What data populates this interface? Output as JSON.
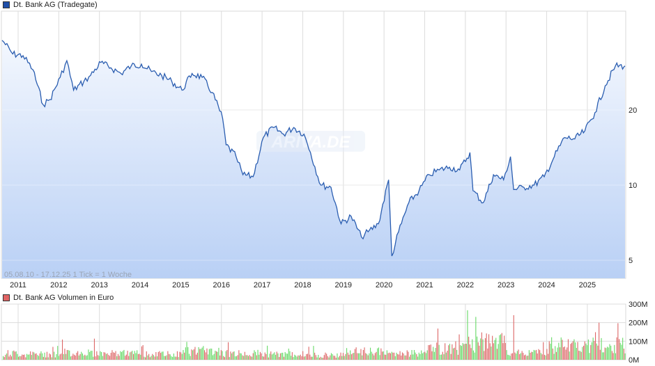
{
  "price_panel": {
    "legend_label": "Dt. Bank AG (Tradegate)",
    "legend_color": "#1f4fa8",
    "range_note": "05.08.10 - 17.12.25   1 Tick = 1 Woche",
    "watermark": "ARIVA.DE",
    "line_color": "#2a5db0",
    "fill_top": "#f3f7fe",
    "fill_bottom": "#b9d0f5"
  },
  "volume_panel": {
    "legend_label": "Dt. Bank AG Volumen in Euro",
    "legend_color": "#e06464",
    "up_color": "#66d966",
    "down_color": "#dd6666"
  },
  "x_axis": {
    "ticks": [
      "2011",
      "2012",
      "2013",
      "2014",
      "2015",
      "2016",
      "2017",
      "2018",
      "2019",
      "2020",
      "2021",
      "2022",
      "2023",
      "2024",
      "2025"
    ]
  },
  "y_axis_price": {
    "ticks": [
      "20",
      "10",
      "5"
    ]
  },
  "y_axis_volume": {
    "ticks": [
      "300M",
      "200M",
      "100M",
      "0M"
    ]
  },
  "chart_data": [
    {
      "type": "line",
      "title": "Dt. Bank AG (Tradegate)",
      "xlabel": "",
      "ylabel": "",
      "y_scale": "log",
      "ylim": [
        4.3,
        42
      ],
      "xlim": [
        "2010-08-05",
        "2025-12-17"
      ],
      "grid": true,
      "legend_position": "top-left",
      "x": [
        "2010-08",
        "2010-11",
        "2011-02",
        "2011-05",
        "2011-08",
        "2011-10",
        "2012-01",
        "2012-03",
        "2012-05",
        "2012-08",
        "2012-10",
        "2013-01",
        "2013-04",
        "2013-07",
        "2013-10",
        "2014-01",
        "2014-04",
        "2014-07",
        "2014-10",
        "2015-01",
        "2015-04",
        "2015-07",
        "2015-10",
        "2016-01",
        "2016-02",
        "2016-05",
        "2016-07",
        "2016-10",
        "2017-01",
        "2017-04",
        "2017-07",
        "2017-10",
        "2018-01",
        "2018-03",
        "2018-06",
        "2018-09",
        "2018-12",
        "2019-03",
        "2019-06",
        "2019-08",
        "2019-11",
        "2020-02",
        "2020-03",
        "2020-05",
        "2020-08",
        "2020-11",
        "2021-02",
        "2021-05",
        "2021-08",
        "2021-11",
        "2022-02",
        "2022-03",
        "2022-06",
        "2022-09",
        "2022-12",
        "2023-02",
        "2023-03",
        "2023-06",
        "2023-09",
        "2023-12",
        "2024-03",
        "2024-06",
        "2024-09",
        "2024-12",
        "2025-03",
        "2025-06",
        "2025-09",
        "2025-12"
      ],
      "values": [
        38.0,
        33.5,
        33.0,
        29.0,
        21.0,
        22.0,
        27.0,
        31.5,
        24.0,
        26.0,
        27.5,
        31.0,
        29.5,
        28.0,
        30.0,
        30.5,
        28.5,
        27.5,
        26.0,
        24.0,
        28.0,
        27.0,
        23.5,
        18.5,
        14.5,
        13.0,
        11.0,
        10.8,
        15.5,
        17.0,
        16.0,
        17.0,
        16.0,
        13.5,
        10.0,
        9.8,
        7.0,
        7.5,
        6.2,
        6.5,
        7.0,
        10.5,
        5.2,
        6.5,
        8.5,
        9.5,
        11.0,
        11.5,
        11.8,
        11.5,
        13.5,
        9.5,
        8.5,
        11.0,
        10.5,
        13.0,
        9.6,
        9.8,
        10.0,
        10.8,
        13.0,
        15.5,
        15.3,
        16.5,
        19.5,
        25.0,
        30.0,
        30.0
      ],
      "annotations": [
        "05.08.10 - 17.12.25   1 Tick = 1 Woche",
        "ARIVA.DE"
      ]
    },
    {
      "type": "bar",
      "title": "Dt. Bank AG Volumen in Euro",
      "ylabel": "",
      "ylim": [
        0,
        300000000
      ],
      "grid": true,
      "legend_position": "top-left",
      "categories": [
        "2011",
        "2012",
        "2013",
        "2014",
        "2015",
        "2016",
        "2017",
        "2018",
        "2019",
        "2020",
        "2021",
        "2022",
        "2023",
        "2024",
        "2025"
      ],
      "values": [
        40000000,
        35000000,
        45000000,
        40000000,
        35000000,
        55000000,
        40000000,
        35000000,
        30000000,
        50000000,
        40000000,
        70000000,
        110000000,
        45000000,
        90000000
      ],
      "peaks": [
        {
          "x": "2023-03",
          "value": 240000000
        },
        {
          "x": "2025-04",
          "value": 200000000
        }
      ]
    }
  ]
}
